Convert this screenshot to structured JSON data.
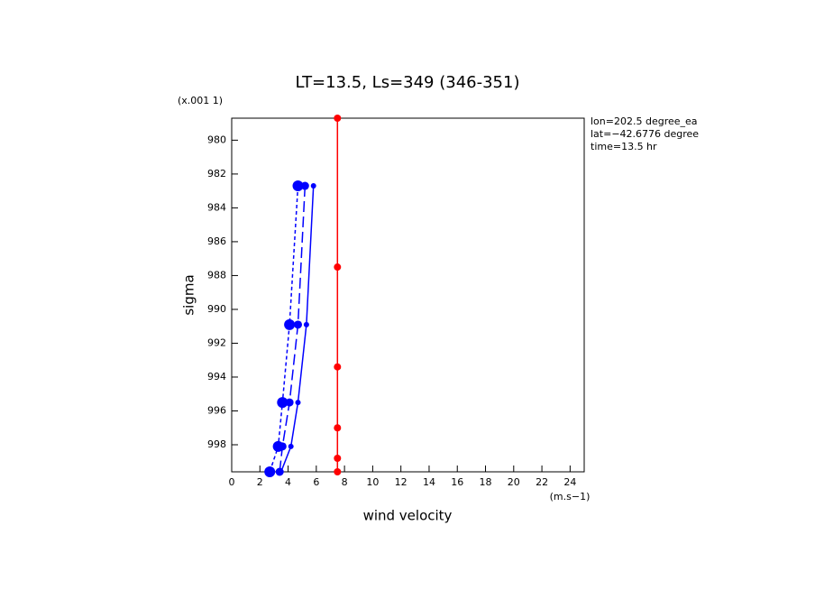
{
  "chart_data": {
    "type": "line",
    "title": "LT=13.5, Ls=349 (346-351)",
    "y_label": "sigma",
    "y_units": "(x.001 1)",
    "x_label": "wind velocity",
    "x_units": "(m.s−1)",
    "annotations": [
      "lon=202.5 degree_ea",
      "lat=−42.6776 degree",
      "time=13.5 hr"
    ],
    "xlim": [
      0,
      25
    ],
    "xticks": [
      0,
      2,
      4,
      6,
      8,
      10,
      12,
      14,
      16,
      18,
      20,
      22,
      24
    ],
    "ylim": [
      999.6,
      978.7
    ],
    "yticks": [
      980,
      982,
      984,
      986,
      988,
      990,
      992,
      994,
      996,
      998
    ],
    "series": [
      {
        "color": "#0000ff",
        "dash": "4,3",
        "marker_size": 6,
        "values": [
          4.7,
          4.1,
          3.6,
          3.3,
          2.7
        ],
        "sigma": [
          982.7,
          990.9,
          995.5,
          998.1,
          999.6
        ]
      },
      {
        "color": "#0000ff",
        "dash": "12,5",
        "marker_size": 4.5,
        "values": [
          5.2,
          4.7,
          4.1,
          3.6,
          3.4
        ],
        "sigma": [
          982.7,
          990.9,
          995.5,
          998.1,
          999.6
        ]
      },
      {
        "color": "#0000ff",
        "dash": "none",
        "marker_size": 3,
        "values": [
          5.8,
          5.3,
          4.7,
          4.2,
          3.5
        ],
        "sigma": [
          982.7,
          990.9,
          995.5,
          998.1,
          999.6
        ]
      },
      {
        "color": "#ff0000",
        "dash": "none",
        "marker_size": 4,
        "values": [
          7.5,
          7.5,
          7.5,
          7.5,
          7.5,
          7.5
        ],
        "sigma": [
          978.7,
          987.5,
          993.4,
          997.0,
          998.8,
          999.6
        ]
      }
    ]
  }
}
